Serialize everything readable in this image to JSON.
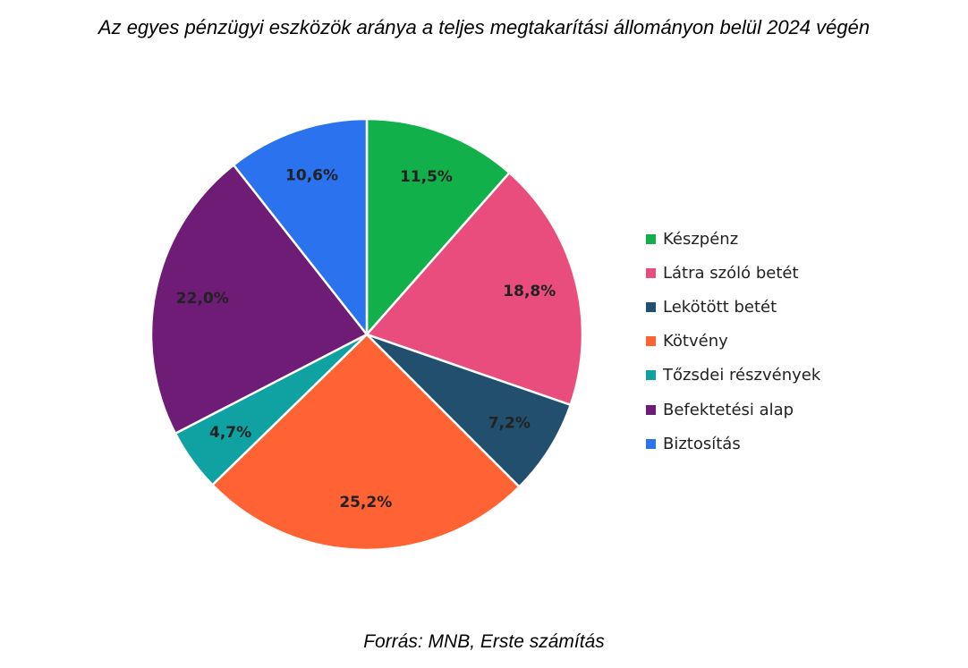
{
  "chart_data": {
    "type": "pie",
    "title": "Az egyes pénzügyi eszközök aránya a teljes megtakarítási állományon belül 2024 végén",
    "categories": [
      "Készpénz",
      "Látra szóló betét",
      "Lekötött betét",
      "Kötvény",
      "Tőzsdei részvények",
      "Befektetési alap",
      "Biztosítás"
    ],
    "values": [
      11.5,
      18.8,
      7.2,
      25.2,
      4.7,
      22.0,
      10.6
    ],
    "value_labels": [
      "11,5%",
      "18,8%",
      "7,2%",
      "25,2%",
      "4,7%",
      "22,0%",
      "10,6%"
    ],
    "colors": [
      "#12B04A",
      "#E84D7E",
      "#234F6E",
      "#FF6233",
      "#10A2A2",
      "#6E1C75",
      "#2A72EE"
    ],
    "legend_position": "right",
    "source": "Forrás: MNB, Erste számítás"
  }
}
